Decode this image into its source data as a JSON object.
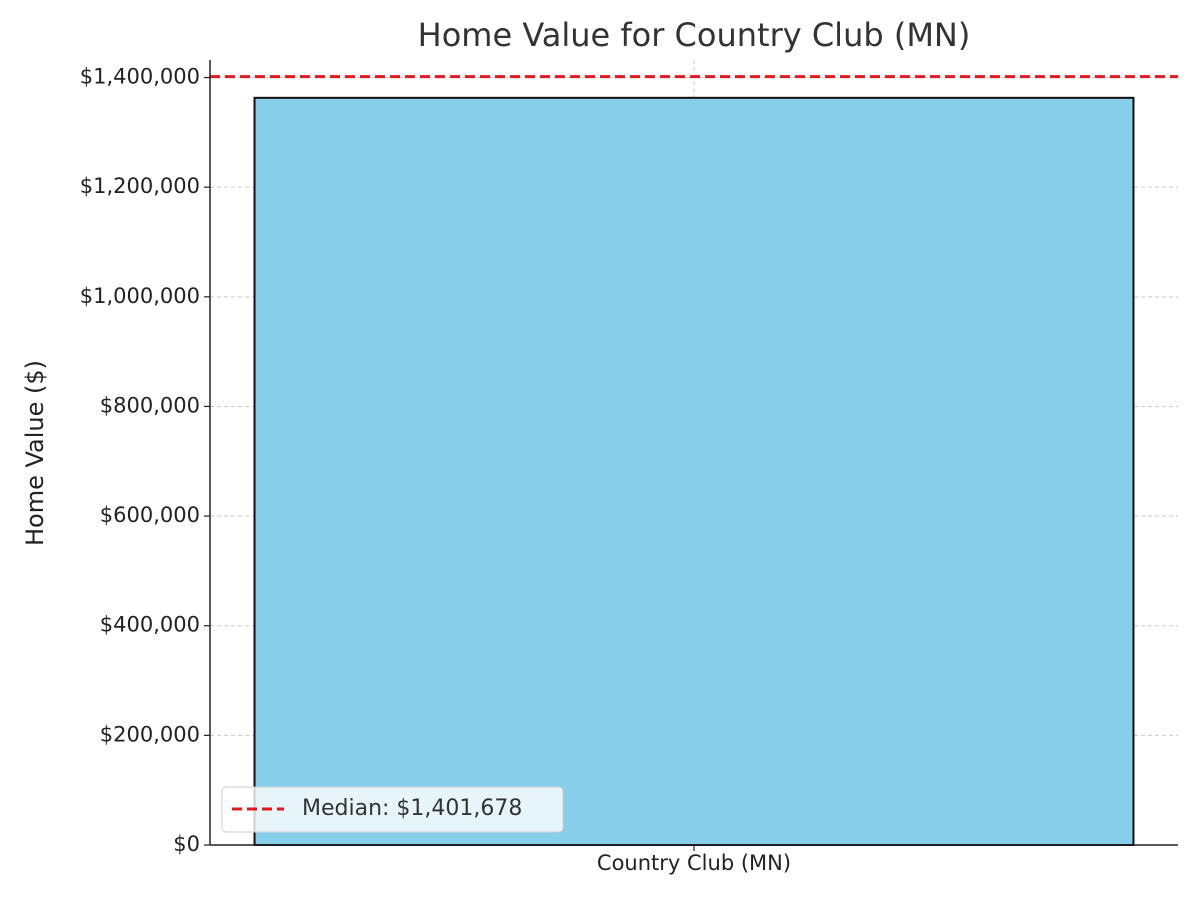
{
  "chart_data": {
    "type": "bar",
    "title": "Home Value for Country Club (MN)",
    "ylabel": "Home Value ($)",
    "categories": [
      "Country Club (MN)"
    ],
    "values": [
      1363000
    ],
    "color": "#87ceeb",
    "ylim": [
      0,
      1432000
    ],
    "yticks": [
      {
        "value": 0,
        "label": "$0"
      },
      {
        "value": 200000,
        "label": "$200,000"
      },
      {
        "value": 400000,
        "label": "$400,000"
      },
      {
        "value": 600000,
        "label": "$600,000"
      },
      {
        "value": 800000,
        "label": "$800,000"
      },
      {
        "value": 1000000,
        "label": "$1,000,000"
      },
      {
        "value": 1200000,
        "label": "$1,200,000"
      },
      {
        "value": 1400000,
        "label": "$1,400,000"
      }
    ],
    "grid": true,
    "reference_line": {
      "value": 1401678,
      "label": "Median: $1,401,678",
      "color": "#e31a1c"
    },
    "legend": "lower left"
  }
}
